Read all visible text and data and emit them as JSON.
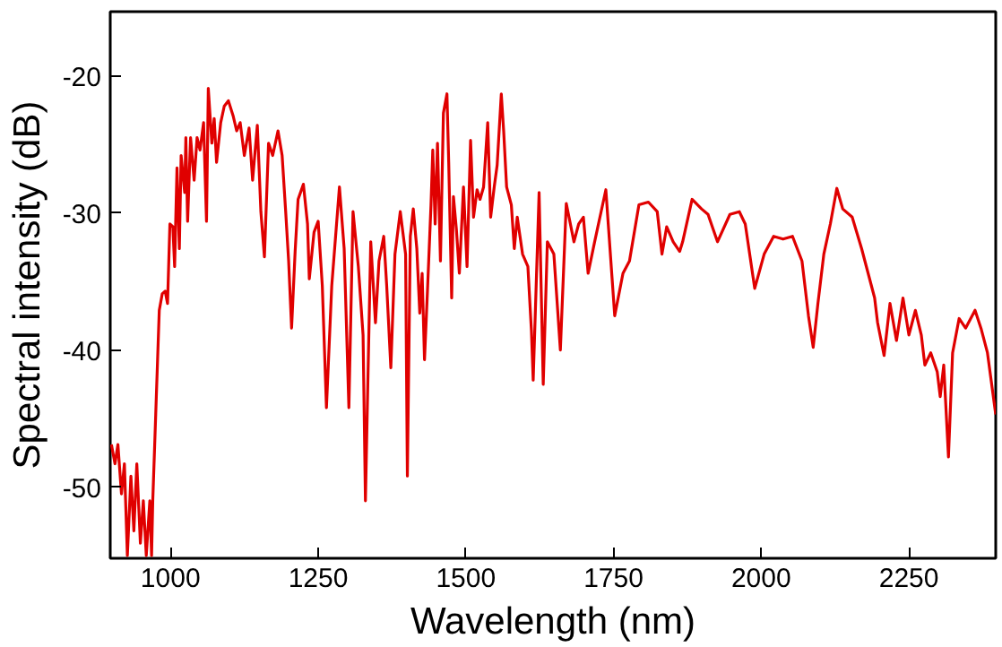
{
  "chart_data": {
    "type": "line",
    "xlabel": "Wavelength (nm)",
    "ylabel": "Spectral intensity (dB)",
    "xlim": [
      898,
      2397
    ],
    "ylim": [
      -55.2,
      -15.3
    ],
    "xticks": [
      1000,
      1250,
      1500,
      1750,
      2000,
      2250
    ],
    "yticks": [
      -20,
      -30,
      -40,
      -50
    ],
    "grid": false,
    "marker": "none",
    "line_style": "solid",
    "series": [
      {
        "color": "#e00000",
        "x": [
          900,
          906,
          911,
          917,
          922,
          927,
          933,
          938,
          943,
          949,
          954,
          959,
          965,
          968,
          970,
          975,
          981,
          986,
          991,
          995,
          999,
          1004,
          1007,
          1011,
          1015,
          1018,
          1024,
          1026,
          1029,
          1034,
          1040,
          1045,
          1050,
          1056,
          1061,
          1064,
          1070,
          1074,
          1078,
          1085,
          1091,
          1098,
          1106,
          1112,
          1118,
          1125,
          1133,
          1139,
          1147,
          1153,
          1159,
          1166,
          1173,
          1182,
          1189,
          1195,
          1200,
          1205,
          1211,
          1216,
          1225,
          1232,
          1235,
          1243,
          1250,
          1257,
          1264,
          1273,
          1286,
          1294,
          1302,
          1309,
          1318,
          1326,
          1330,
          1339,
          1347,
          1353,
          1361,
          1366,
          1373,
          1380,
          1389,
          1398,
          1401,
          1406,
          1411,
          1417,
          1422,
          1426,
          1430,
          1435,
          1441,
          1444,
          1448,
          1452,
          1457,
          1462,
          1468,
          1471,
          1476,
          1479,
          1484,
          1489,
          1496,
          1502,
          1508,
          1513,
          1519,
          1524,
          1530,
          1537,
          1542,
          1548,
          1553,
          1560,
          1564,
          1569,
          1577,
          1582,
          1587,
          1596,
          1605,
          1611,
          1614,
          1624,
          1631,
          1638,
          1649,
          1660,
          1670,
          1683,
          1691,
          1699,
          1707,
          1718,
          1737,
          1752,
          1766,
          1777,
          1793,
          1809,
          1824,
          1832,
          1840,
          1851,
          1862,
          1867,
          1883,
          1899,
          1910,
          1926,
          1947,
          1963,
          1973,
          1989,
          2005,
          2021,
          2037,
          2053,
          2069,
          2080,
          2088,
          2096,
          2106,
          2117,
          2128,
          2138,
          2154,
          2170,
          2181,
          2192,
          2197,
          2208,
          2218,
          2229,
          2240,
          2250,
          2261,
          2271,
          2277,
          2287,
          2298,
          2303,
          2309,
          2317,
          2324,
          2335,
          2346,
          2362,
          2372,
          2383,
          2397
        ],
        "values": [
          -46.9,
          -48.3,
          -46.9,
          -50.5,
          -48.3,
          -55.0,
          -49.2,
          -53.2,
          -48.3,
          -54.1,
          -51.0,
          -55.0,
          -51.0,
          -55.0,
          -51.0,
          -44.7,
          -37.1,
          -35.9,
          -35.7,
          -36.6,
          -30.8,
          -31.0,
          -33.9,
          -26.7,
          -32.6,
          -25.8,
          -28.5,
          -24.5,
          -30.6,
          -24.5,
          -27.6,
          -24.5,
          -25.4,
          -23.4,
          -30.6,
          -20.9,
          -24.9,
          -23.1,
          -26.3,
          -23.4,
          -22.2,
          -21.8,
          -22.9,
          -24.0,
          -23.4,
          -25.8,
          -23.8,
          -27.6,
          -23.6,
          -29.9,
          -33.2,
          -24.9,
          -25.8,
          -24.0,
          -25.8,
          -29.9,
          -33.5,
          -38.4,
          -32.8,
          -29.0,
          -27.9,
          -30.8,
          -34.8,
          -31.4,
          -30.6,
          -35.3,
          -44.2,
          -35.3,
          -28.1,
          -32.6,
          -44.2,
          -29.9,
          -33.9,
          -38.9,
          -51.0,
          -32.1,
          -38.0,
          -33.5,
          -31.7,
          -35.3,
          -41.3,
          -33.0,
          -29.9,
          -33.0,
          -49.2,
          -31.7,
          -29.7,
          -32.6,
          -37.3,
          -34.4,
          -40.7,
          -35.7,
          -29.4,
          -25.4,
          -30.8,
          -24.9,
          -33.5,
          -22.7,
          -21.3,
          -26.3,
          -36.2,
          -28.8,
          -31.2,
          -34.4,
          -28.1,
          -33.9,
          -24.7,
          -30.3,
          -28.3,
          -29.0,
          -28.1,
          -23.4,
          -30.3,
          -28.1,
          -26.5,
          -21.3,
          -24.0,
          -28.1,
          -29.4,
          -32.6,
          -30.3,
          -33.0,
          -33.9,
          -38.6,
          -42.2,
          -28.5,
          -42.5,
          -32.1,
          -33.0,
          -40.0,
          -29.3,
          -32.1,
          -30.8,
          -30.3,
          -34.4,
          -32.1,
          -28.3,
          -37.5,
          -34.4,
          -33.5,
          -29.4,
          -29.2,
          -29.9,
          -33.0,
          -31.0,
          -32.1,
          -32.8,
          -32.1,
          -29.0,
          -29.7,
          -30.1,
          -32.1,
          -30.1,
          -29.9,
          -30.8,
          -35.5,
          -33.0,
          -31.7,
          -31.9,
          -31.7,
          -33.5,
          -37.5,
          -39.8,
          -36.6,
          -33.0,
          -30.8,
          -28.2,
          -29.7,
          -30.3,
          -32.6,
          -34.4,
          -36.2,
          -38.0,
          -40.4,
          -36.6,
          -39.3,
          -36.2,
          -38.9,
          -37.1,
          -38.9,
          -41.1,
          -40.2,
          -41.6,
          -43.4,
          -41.1,
          -47.8,
          -40.2,
          -37.7,
          -38.4,
          -37.1,
          -38.4,
          -40.2,
          -44.7
        ]
      }
    ]
  }
}
